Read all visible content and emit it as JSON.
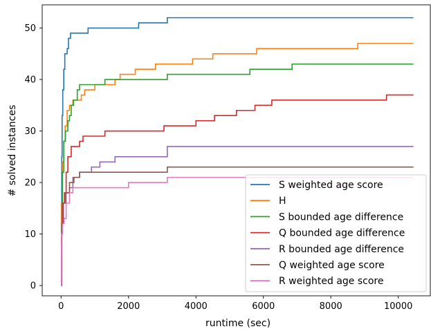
{
  "chart_data": {
    "type": "line",
    "xlabel": "runtime (sec)",
    "ylabel": "# solved instances",
    "xlim": [
      -560,
      10950
    ],
    "ylim": [
      -2,
      54.5
    ],
    "xticks": [
      0,
      2000,
      4000,
      6000,
      8000,
      10000
    ],
    "yticks": [
      0,
      10,
      20,
      30,
      40,
      50
    ],
    "grid": false,
    "legend_position": "lower-right",
    "step_style": "post",
    "series": [
      {
        "name": "S weighted age score",
        "color": "#1f77b4",
        "points": [
          [
            0,
            0
          ],
          [
            10,
            16
          ],
          [
            20,
            25
          ],
          [
            30,
            33
          ],
          [
            50,
            38
          ],
          [
            80,
            42
          ],
          [
            110,
            45
          ],
          [
            180,
            46
          ],
          [
            220,
            48
          ],
          [
            280,
            49
          ],
          [
            800,
            50
          ],
          [
            2300,
            51
          ],
          [
            3150,
            52
          ],
          [
            10450,
            52
          ]
        ]
      },
      {
        "name": "H",
        "color": "#ff7f0e",
        "points": [
          [
            0,
            0
          ],
          [
            15,
            16
          ],
          [
            40,
            24
          ],
          [
            80,
            28
          ],
          [
            120,
            31
          ],
          [
            180,
            34
          ],
          [
            250,
            35
          ],
          [
            350,
            36
          ],
          [
            600,
            37
          ],
          [
            700,
            38
          ],
          [
            1000,
            39
          ],
          [
            1600,
            40
          ],
          [
            1750,
            41
          ],
          [
            2200,
            42
          ],
          [
            2800,
            43
          ],
          [
            3900,
            44
          ],
          [
            4500,
            45
          ],
          [
            5800,
            46
          ],
          [
            8800,
            47
          ],
          [
            10450,
            47
          ]
        ]
      },
      {
        "name": "S bounded age difference",
        "color": "#2ca02c",
        "points": [
          [
            0,
            0
          ],
          [
            15,
            12
          ],
          [
            40,
            22
          ],
          [
            80,
            28
          ],
          [
            130,
            30
          ],
          [
            200,
            32
          ],
          [
            250,
            33
          ],
          [
            300,
            35
          ],
          [
            370,
            36
          ],
          [
            480,
            38
          ],
          [
            550,
            39
          ],
          [
            1300,
            40
          ],
          [
            3150,
            41
          ],
          [
            5600,
            42
          ],
          [
            6850,
            43
          ],
          [
            10450,
            43
          ]
        ]
      },
      {
        "name": "Q bounded age difference",
        "color": "#d62728",
        "points": [
          [
            0,
            0
          ],
          [
            20,
            12
          ],
          [
            50,
            16
          ],
          [
            100,
            18
          ],
          [
            150,
            22
          ],
          [
            200,
            25
          ],
          [
            300,
            27
          ],
          [
            550,
            28
          ],
          [
            650,
            29
          ],
          [
            1300,
            30
          ],
          [
            3050,
            31
          ],
          [
            4000,
            32
          ],
          [
            4550,
            33
          ],
          [
            5200,
            34
          ],
          [
            5750,
            35
          ],
          [
            6250,
            36
          ],
          [
            9650,
            37
          ],
          [
            10450,
            37
          ]
        ]
      },
      {
        "name": "R bounded age difference",
        "color": "#9467bd",
        "points": [
          [
            0,
            0
          ],
          [
            20,
            12
          ],
          [
            70,
            16
          ],
          [
            150,
            18
          ],
          [
            250,
            19
          ],
          [
            350,
            21
          ],
          [
            550,
            22
          ],
          [
            900,
            23
          ],
          [
            1150,
            24
          ],
          [
            1600,
            25
          ],
          [
            3150,
            27
          ],
          [
            10450,
            27
          ]
        ]
      },
      {
        "name": "Q weighted age score",
        "color": "#8c564b",
        "points": [
          [
            0,
            0
          ],
          [
            20,
            12
          ],
          [
            60,
            16
          ],
          [
            120,
            18
          ],
          [
            250,
            20
          ],
          [
            380,
            21
          ],
          [
            550,
            22
          ],
          [
            3150,
            23
          ],
          [
            10450,
            23
          ]
        ]
      },
      {
        "name": "R weighted age score",
        "color": "#e377c2",
        "points": [
          [
            0,
            0
          ],
          [
            10,
            10
          ],
          [
            40,
            12
          ],
          [
            90,
            13
          ],
          [
            150,
            16
          ],
          [
            250,
            18
          ],
          [
            350,
            19
          ],
          [
            2000,
            20
          ],
          [
            3150,
            21
          ],
          [
            10450,
            21
          ]
        ]
      }
    ]
  }
}
